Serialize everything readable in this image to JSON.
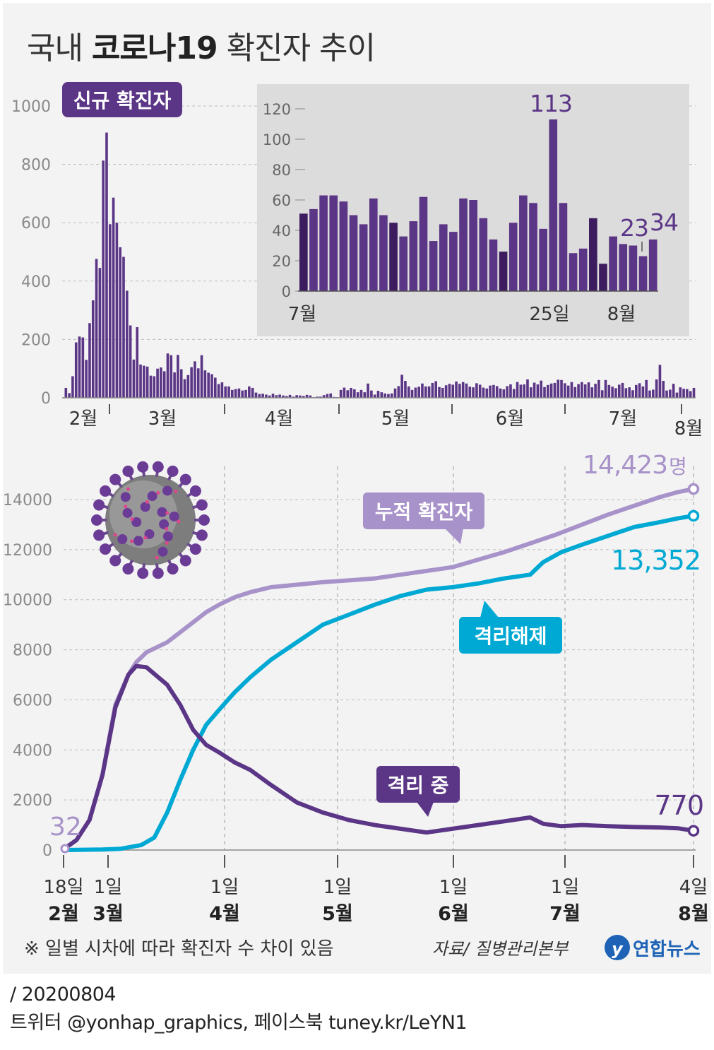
{
  "title": {
    "prefix": "국내 ",
    "bold": "코로나19",
    "suffix": " 확진자 추이"
  },
  "colors": {
    "purple": "#5b3586",
    "dark_purple": "#3c1c5e",
    "light_purple": "#a792c9",
    "cyan": "#00a9d3",
    "axis": "#8a8a8a",
    "grid": "#bdbdbd",
    "inset_bg": "#dcdcdc"
  },
  "chart_data": [
    {
      "type": "bar",
      "id": "daily",
      "badge": "신규 확진자",
      "y_ticks": [
        "0",
        "200",
        "400",
        "600",
        "800",
        "1000"
      ],
      "ylim": [
        0,
        1000
      ],
      "month_labels": [
        "2월",
        "3월",
        "4월",
        "5월",
        "6월",
        "7월",
        "8월"
      ],
      "values": [
        34,
        16,
        74,
        190,
        210,
        207,
        130,
        256,
        334,
        476,
        445,
        813,
        909,
        595,
        686,
        600,
        516,
        483,
        367,
        248,
        131,
        242,
        114,
        110,
        107,
        76,
        74,
        100,
        104,
        91,
        152,
        146,
        87,
        147,
        98,
        64,
        78,
        105,
        125,
        101,
        146,
        94,
        86,
        81,
        69,
        47,
        53,
        39,
        39,
        27,
        30,
        32,
        25,
        27,
        39,
        34,
        18,
        13,
        14,
        11,
        8,
        14,
        9,
        11,
        8,
        6,
        10,
        4,
        9,
        8,
        6,
        10,
        8,
        2,
        4,
        4,
        9,
        13,
        15,
        3,
        2,
        27,
        35,
        26,
        34,
        29,
        19,
        27,
        19,
        49,
        25,
        11,
        24,
        19,
        15,
        13,
        15,
        32,
        40,
        79,
        58,
        39,
        27,
        35,
        38,
        49,
        39,
        39,
        51,
        57,
        37,
        34,
        43,
        48,
        45,
        56,
        48,
        54,
        49,
        38,
        36,
        50,
        45,
        35,
        32,
        42,
        44,
        40,
        32,
        29,
        40,
        46,
        30,
        54,
        45,
        46,
        63,
        36,
        52,
        46,
        59,
        37,
        44,
        49,
        51,
        62,
        61,
        50,
        42,
        54,
        37,
        47,
        54,
        46,
        53,
        36,
        48,
        61,
        26,
        61,
        44,
        38,
        33,
        45,
        51,
        33,
        36,
        26,
        44,
        50,
        39,
        61,
        25,
        28,
        63,
        113,
        58,
        25,
        28,
        48,
        18,
        36,
        31,
        30,
        23,
        34
      ]
    },
    {
      "type": "bar",
      "id": "inset",
      "y_ticks": [
        "0",
        "20",
        "40",
        "60",
        "80",
        "100",
        "120"
      ],
      "ylim": [
        0,
        120
      ],
      "x_labels": [
        "7월",
        "25일",
        "8월"
      ],
      "values": [
        51,
        54,
        63,
        63,
        59,
        50,
        44,
        61,
        50,
        45,
        36,
        46,
        62,
        33,
        44,
        39,
        61,
        60,
        48,
        34,
        26,
        45,
        63,
        58,
        41,
        113,
        58,
        25,
        28,
        48,
        18,
        36,
        31,
        30,
        23,
        34
      ],
      "annotations": [
        {
          "label": "113",
          "value": 113
        },
        {
          "label": "23",
          "value": 23
        },
        {
          "label": "34",
          "value": 34
        }
      ]
    },
    {
      "type": "line",
      "id": "cumulative",
      "y_ticks": [
        "0",
        "2000",
        "4000",
        "6000",
        "8000",
        "10000",
        "12000",
        "14000"
      ],
      "ylim": [
        0,
        15000
      ],
      "x_day_labels": [
        "18일",
        "1일",
        "1일",
        "1일",
        "1일",
        "1일",
        "4일"
      ],
      "x_month_labels": [
        "2월",
        "3월",
        "4월",
        "5월",
        "6월",
        "7월",
        "8월"
      ],
      "series": [
        {
          "name": "누적 확진자",
          "start_label": "32",
          "end_label": "14,423",
          "unit": "명",
          "points": [
            [
              0,
              32
            ],
            [
              5,
              400
            ],
            [
              10,
              1200
            ],
            [
              15,
              3000
            ],
            [
              20,
              5800
            ],
            [
              25,
              7000
            ],
            [
              28,
              7500
            ],
            [
              32,
              7900
            ],
            [
              40,
              8300
            ],
            [
              45,
              8700
            ],
            [
              50,
              9100
            ],
            [
              55,
              9500
            ],
            [
              60,
              9800
            ],
            [
              66,
              10100
            ],
            [
              72,
              10300
            ],
            [
              80,
              10500
            ],
            [
              90,
              10600
            ],
            [
              100,
              10700
            ],
            [
              110,
              10770
            ],
            [
              120,
              10850
            ],
            [
              130,
              11000
            ],
            [
              140,
              11150
            ],
            [
              150,
              11300
            ],
            [
              160,
              11600
            ],
            [
              170,
              11900
            ],
            [
              180,
              12250
            ],
            [
              190,
              12600
            ],
            [
              200,
              13000
            ],
            [
              210,
              13400
            ],
            [
              220,
              13750
            ],
            [
              230,
              14100
            ],
            [
              237,
              14300
            ],
            [
              243,
              14423
            ]
          ]
        },
        {
          "name": "격리해제",
          "end_label": "13,352",
          "points": [
            [
              0,
              0
            ],
            [
              15,
              20
            ],
            [
              22,
              50
            ],
            [
              30,
              200
            ],
            [
              35,
              500
            ],
            [
              40,
              1500
            ],
            [
              45,
              2800
            ],
            [
              50,
              4000
            ],
            [
              55,
              5000
            ],
            [
              60,
              5600
            ],
            [
              66,
              6300
            ],
            [
              72,
              6900
            ],
            [
              80,
              7600
            ],
            [
              90,
              8300
            ],
            [
              100,
              9000
            ],
            [
              110,
              9400
            ],
            [
              120,
              9800
            ],
            [
              130,
              10150
            ],
            [
              140,
              10400
            ],
            [
              150,
              10500
            ],
            [
              160,
              10650
            ],
            [
              170,
              10850
            ],
            [
              180,
              11000
            ],
            [
              185,
              11500
            ],
            [
              192,
              11900
            ],
            [
              200,
              12200
            ],
            [
              210,
              12550
            ],
            [
              220,
              12900
            ],
            [
              230,
              13100
            ],
            [
              237,
              13250
            ],
            [
              243,
              13352
            ]
          ]
        },
        {
          "name": "격리 중",
          "end_label": "770",
          "points": [
            [
              0,
              32
            ],
            [
              5,
              400
            ],
            [
              10,
              1200
            ],
            [
              15,
              3000
            ],
            [
              20,
              5700
            ],
            [
              25,
              7000
            ],
            [
              28,
              7350
            ],
            [
              32,
              7300
            ],
            [
              40,
              6600
            ],
            [
              45,
              5800
            ],
            [
              50,
              4800
            ],
            [
              55,
              4200
            ],
            [
              60,
              3900
            ],
            [
              66,
              3500
            ],
            [
              72,
              3200
            ],
            [
              80,
              2600
            ],
            [
              90,
              1900
            ],
            [
              100,
              1500
            ],
            [
              110,
              1200
            ],
            [
              120,
              1000
            ],
            [
              130,
              850
            ],
            [
              140,
              700
            ],
            [
              150,
              850
            ],
            [
              160,
              1000
            ],
            [
              170,
              1150
            ],
            [
              180,
              1300
            ],
            [
              185,
              1050
            ],
            [
              192,
              950
            ],
            [
              200,
              1000
            ],
            [
              210,
              950
            ],
            [
              220,
              920
            ],
            [
              230,
              900
            ],
            [
              237,
              870
            ],
            [
              243,
              770
            ]
          ]
        }
      ]
    }
  ],
  "note": "※ 일별 시차에 따라 확진자 수 차이 있음",
  "source": "자료/ 질병관리본부",
  "logo": "연합뉴스",
  "footer": {
    "date": "/ 20200804",
    "social": "트위터 @yonhap_graphics, 페이스북 tuney.kr/LeYN1"
  }
}
